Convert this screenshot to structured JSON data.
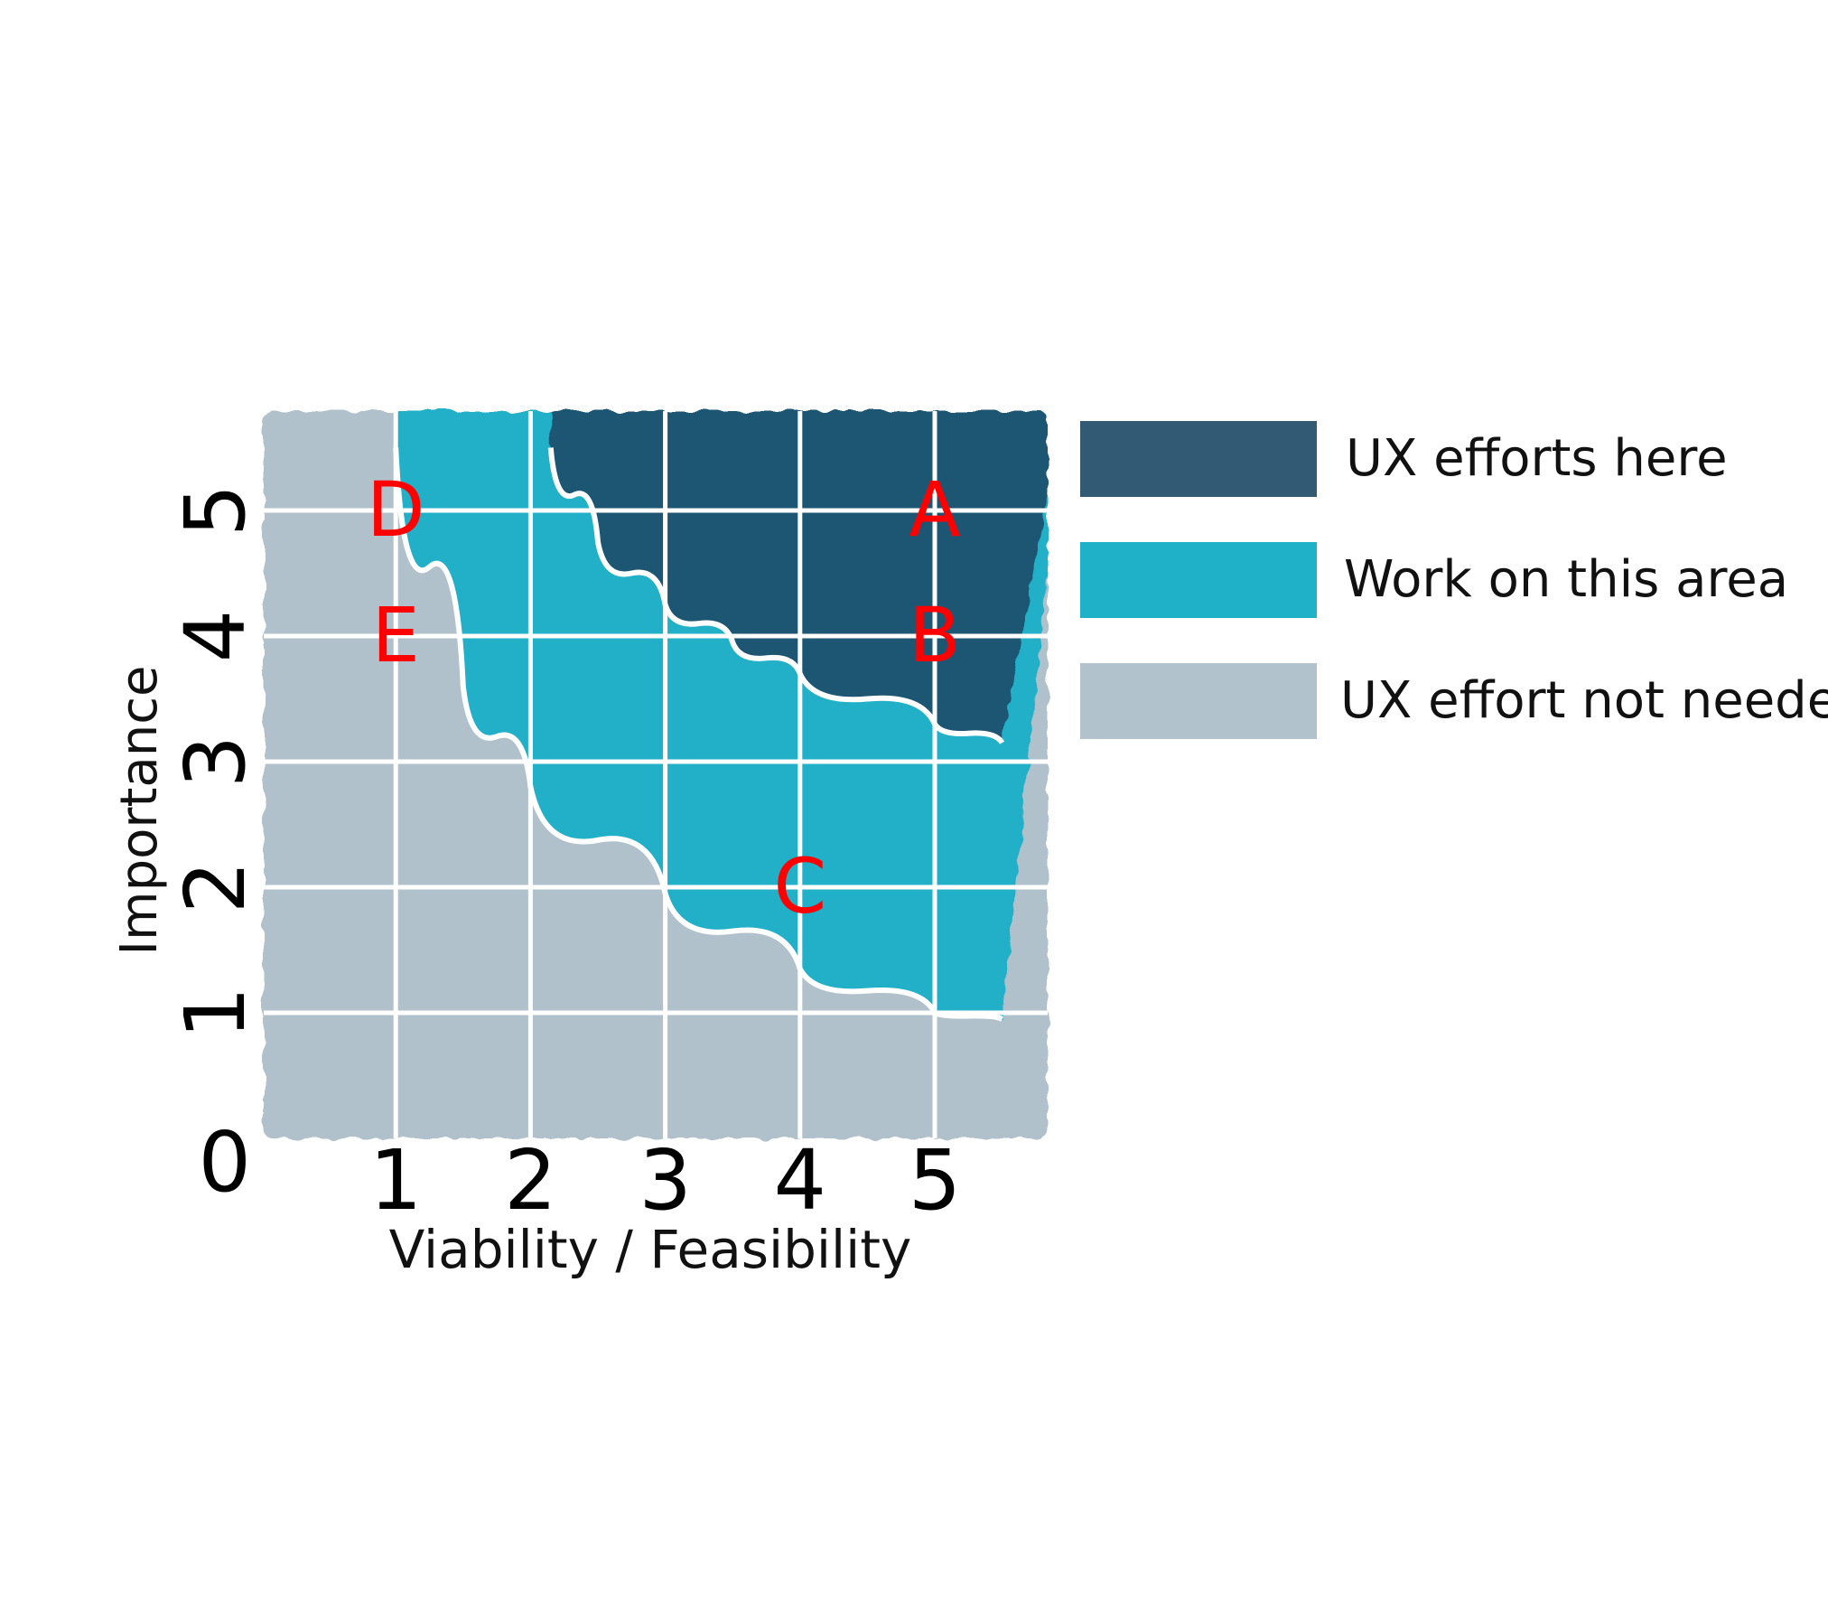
{
  "chart_data": {
    "type": "scatter",
    "xlabel": "Viability / Feasibility",
    "ylabel": "Importance",
    "xlim": [
      0,
      5.5
    ],
    "ylim": [
      0,
      5.5
    ],
    "x_ticks": [
      "0",
      "1",
      "2",
      "3",
      "4",
      "5"
    ],
    "y_ticks": [
      "1",
      "2",
      "3",
      "4",
      "5"
    ],
    "grid": true,
    "legend_position": "right",
    "points": [
      {
        "label": "A",
        "x": 5,
        "y": 5
      },
      {
        "label": "B",
        "x": 5,
        "y": 4
      },
      {
        "label": "C",
        "x": 4,
        "y": 2
      },
      {
        "label": "D",
        "x": 1,
        "y": 5
      },
      {
        "label": "E",
        "x": 1,
        "y": 4
      }
    ],
    "regions": [
      {
        "name": "UX efforts here",
        "color": "#1d5773"
      },
      {
        "name": "Work on this area",
        "color": "#20b0c8"
      },
      {
        "name": "UX effort not needed",
        "color": "#b0c1cc"
      }
    ],
    "point_label_color": "#ff0000"
  },
  "legend": {
    "items": [
      {
        "label": "UX efforts here",
        "color": "#325a74"
      },
      {
        "label": "Work on this area",
        "color": "#1fb1c7"
      },
      {
        "label": "UX effort not needed",
        "color": "#b1c2cd"
      }
    ]
  }
}
